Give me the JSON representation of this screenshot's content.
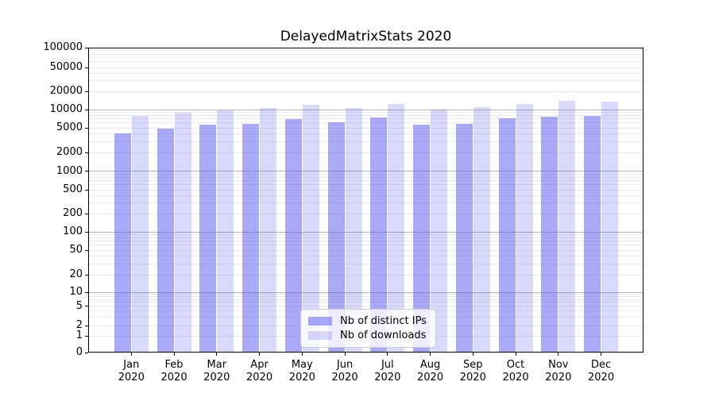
{
  "chart_data": {
    "type": "bar",
    "title": "DelayedMatrixStats 2020",
    "year": "2020",
    "categories": [
      "Jan",
      "Feb",
      "Mar",
      "Apr",
      "May",
      "Jun",
      "Jul",
      "Aug",
      "Sep",
      "Oct",
      "Nov",
      "Dec"
    ],
    "series": [
      {
        "name": "Nb of distinct IPs",
        "values": [
          4100,
          4800,
          5600,
          5900,
          7000,
          6200,
          7300,
          5700,
          5900,
          7200,
          7700,
          7800
        ],
        "color": "rgba(90,90,240,0.52)"
      },
      {
        "name": "Nb of downloads",
        "values": [
          7900,
          8900,
          9600,
          10600,
          12100,
          10700,
          12500,
          9900,
          10900,
          12400,
          13800,
          13500
        ],
        "color": "rgba(90,90,240,0.23)"
      }
    ],
    "y_axis": {
      "scale": "pseudo-log",
      "ylim": [
        0,
        100000
      ],
      "tick_values": [
        0,
        1,
        2,
        5,
        10,
        20,
        50,
        100,
        200,
        500,
        1000,
        2000,
        5000,
        10000,
        20000,
        50000,
        100000
      ],
      "tick_labels": [
        "0",
        "1",
        "2",
        "5",
        "10",
        "20",
        "50",
        "100",
        "200",
        "500",
        "1000",
        "2000",
        "5000",
        "10000",
        "20000",
        "50000",
        "100000"
      ],
      "major_gridlines": [
        10,
        100,
        1000,
        10000
      ],
      "minor_gridlines": [
        1,
        2,
        3,
        4,
        5,
        6,
        7,
        8,
        9,
        20,
        30,
        40,
        50,
        60,
        70,
        80,
        90,
        200,
        300,
        400,
        500,
        600,
        700,
        800,
        900,
        2000,
        3000,
        4000,
        5000,
        6000,
        7000,
        8000,
        9000,
        20000,
        30000,
        40000,
        50000,
        60000,
        70000,
        80000,
        90000
      ]
    },
    "legend": {
      "position": "lower center"
    },
    "grid": true,
    "colors": {
      "bar_base": "#5a5af0",
      "major_grid": "#b4b4b4",
      "minor_grid": "#ebebeb",
      "axis": "#000000",
      "background": "#ffffff"
    }
  }
}
